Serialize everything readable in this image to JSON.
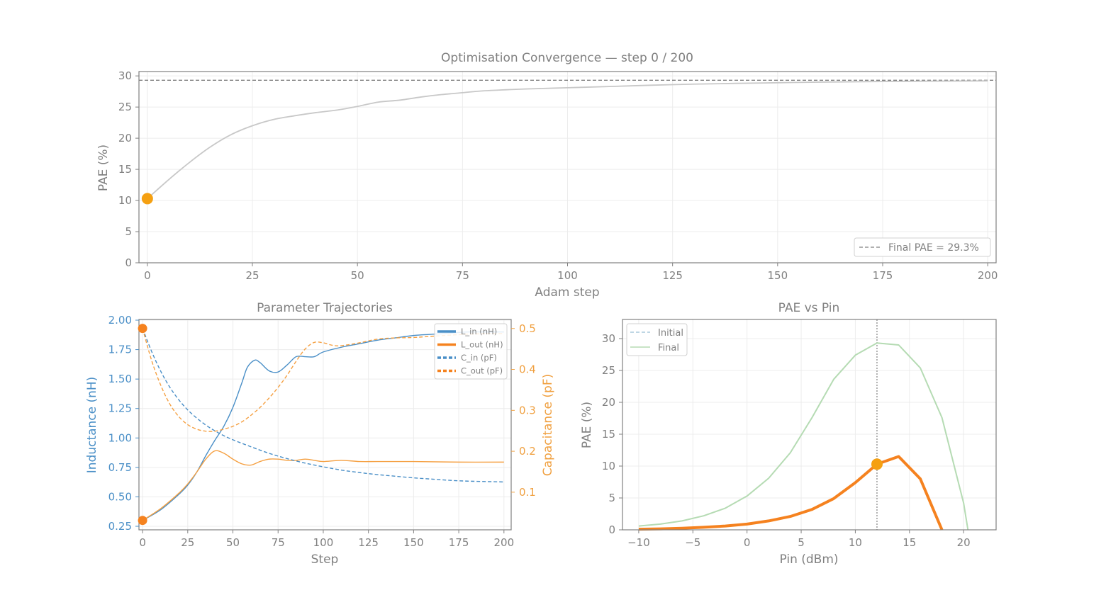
{
  "colors": {
    "text": "#808080",
    "axis": "#808080",
    "grid": "#ececec",
    "convergence_line": "#c8c8c8",
    "marker": "#f5a011",
    "l_in": "#4a8fc7",
    "l_out": "#f5a042",
    "c_in": "#4a8fc7",
    "c_out": "#f5a042",
    "inductance_axis": "#4a8fc7",
    "capacitance_axis": "#f0a040",
    "initial_curve": "#a8c8dc",
    "final_curve": "#b5dbb3",
    "current_curve": "#f5821f"
  },
  "chart_data": [
    {
      "id": "convergence",
      "type": "line",
      "title": "Optimisation Convergence — step 0 / 200",
      "xlabel": "Adam step",
      "ylabel": "PAE (%)",
      "xlim": [
        -2,
        202
      ],
      "ylim": [
        0,
        30
      ],
      "xticks": [
        0,
        25,
        50,
        75,
        100,
        125,
        150,
        175,
        200
      ],
      "yticks": [
        0,
        5,
        10,
        15,
        20,
        25,
        30
      ],
      "grid": true,
      "series": [
        {
          "x": [
            0,
            5,
            10,
            15,
            20,
            25,
            30,
            35,
            40,
            45,
            50,
            55,
            60,
            65,
            70,
            75,
            80,
            90,
            100,
            110,
            125,
            140,
            150,
            160,
            175,
            200
          ],
          "values": [
            10.3,
            13.3,
            16.1,
            18.6,
            20.6,
            22.0,
            23.0,
            23.6,
            24.1,
            24.5,
            25.1,
            25.8,
            26.1,
            26.6,
            27.0,
            27.3,
            27.6,
            27.9,
            28.1,
            28.3,
            28.6,
            28.8,
            28.9,
            29.0,
            29.1,
            29.2
          ]
        }
      ],
      "reference_line": {
        "y": 29.3,
        "label": "Final PAE = 29.3%"
      },
      "marker": {
        "x": 0,
        "y": 10.3
      },
      "legend_position": "lower-right"
    },
    {
      "id": "trajectories",
      "type": "line",
      "title": "Parameter Trajectories",
      "xlabel": "Step",
      "ylabel": "Inductance (nH)",
      "ylabel_right": "Capacitance (pF)",
      "xlim": [
        -2,
        204
      ],
      "ylim": [
        0.22,
        2.0
      ],
      "ylim_right": [
        0.008,
        0.5221
      ],
      "xticks": [
        0,
        25,
        50,
        75,
        100,
        125,
        150,
        175,
        200
      ],
      "yticks": [
        0.25,
        0.5,
        0.75,
        1.0,
        1.25,
        1.5,
        1.75,
        2.0
      ],
      "ytick_labels": [
        "0.25",
        "0.50",
        "0.75",
        "1.00",
        "1.25",
        "1.50",
        "1.75",
        "2.00"
      ],
      "yticks_right": [
        0.1,
        0.2,
        0.3,
        0.4,
        0.5
      ],
      "grid": true,
      "legend_position": "upper-right",
      "series": [
        {
          "name": "L_in (nH)",
          "axis": "left",
          "style": "solid",
          "x": [
            0,
            10,
            20,
            25,
            30,
            35,
            40,
            45,
            50,
            55,
            58,
            62,
            65,
            70,
            75,
            80,
            85,
            90,
            95,
            100,
            110,
            120,
            130,
            140,
            150,
            160,
            170,
            180,
            190,
            200
          ],
          "values": [
            0.3,
            0.39,
            0.52,
            0.6,
            0.71,
            0.85,
            0.98,
            1.1,
            1.26,
            1.47,
            1.6,
            1.66,
            1.64,
            1.57,
            1.56,
            1.62,
            1.69,
            1.69,
            1.69,
            1.73,
            1.77,
            1.8,
            1.83,
            1.85,
            1.87,
            1.88,
            1.89,
            1.9,
            1.9,
            1.9
          ]
        },
        {
          "name": "L_out (nH)",
          "axis": "left",
          "style": "solid",
          "x": [
            0,
            10,
            20,
            25,
            30,
            35,
            40,
            45,
            50,
            55,
            60,
            65,
            70,
            75,
            80,
            85,
            90,
            95,
            100,
            110,
            120,
            130,
            150,
            175,
            200
          ],
          "values": [
            0.3,
            0.4,
            0.53,
            0.61,
            0.71,
            0.82,
            0.89,
            0.87,
            0.82,
            0.78,
            0.77,
            0.8,
            0.82,
            0.82,
            0.81,
            0.81,
            0.82,
            0.81,
            0.8,
            0.81,
            0.8,
            0.8,
            0.8,
            0.795,
            0.795
          ]
        },
        {
          "name": "C_in (pF)",
          "axis": "right",
          "style": "dashed",
          "x": [
            0,
            5,
            10,
            15,
            20,
            25,
            30,
            35,
            40,
            45,
            50,
            60,
            70,
            80,
            90,
            100,
            110,
            120,
            130,
            140,
            150,
            160,
            170,
            180,
            190,
            200
          ],
          "values": [
            0.5,
            0.444,
            0.396,
            0.357,
            0.326,
            0.301,
            0.281,
            0.264,
            0.25,
            0.238,
            0.228,
            0.211,
            0.195,
            0.182,
            0.171,
            0.162,
            0.154,
            0.148,
            0.143,
            0.139,
            0.135,
            0.132,
            0.129,
            0.127,
            0.126,
            0.125
          ]
        },
        {
          "name": "C_out (pF)",
          "axis": "right",
          "style": "dashed",
          "x": [
            0,
            5,
            10,
            15,
            20,
            25,
            30,
            35,
            40,
            45,
            50,
            55,
            60,
            65,
            70,
            75,
            80,
            85,
            90,
            95,
            100,
            105,
            110,
            120,
            130,
            140,
            150,
            160,
            180,
            200
          ],
          "values": [
            0.5,
            0.422,
            0.362,
            0.316,
            0.285,
            0.265,
            0.254,
            0.249,
            0.249,
            0.254,
            0.261,
            0.272,
            0.288,
            0.307,
            0.33,
            0.356,
            0.386,
            0.42,
            0.45,
            0.466,
            0.465,
            0.459,
            0.458,
            0.465,
            0.474,
            0.477,
            0.478,
            0.481,
            0.486,
            0.488
          ]
        }
      ],
      "markers": [
        {
          "x": 0,
          "y": 1.93,
          "axis": "left"
        },
        {
          "x": 0,
          "y": 0.3,
          "axis": "left"
        }
      ]
    },
    {
      "id": "pae_vs_pin",
      "type": "line",
      "title": "PAE vs Pin",
      "xlabel": "Pin (dBm)",
      "ylabel": "PAE (%)",
      "xlim": [
        -11.5,
        23
      ],
      "ylim": [
        0,
        33
      ],
      "xticks": [
        -10,
        -5,
        0,
        5,
        10,
        15,
        20
      ],
      "xtick_labels": [
        "−10",
        "−5",
        "0",
        "5",
        "10",
        "15",
        "20"
      ],
      "yticks": [
        0,
        5,
        10,
        15,
        20,
        25,
        30
      ],
      "grid": true,
      "legend_position": "upper-left",
      "vline_x": 12,
      "series": [
        {
          "name": "Initial",
          "style": "dashed",
          "x": [
            -10,
            -8,
            -6,
            -4,
            -2,
            0,
            2,
            4,
            6,
            8,
            10,
            12,
            14,
            16,
            18
          ],
          "values": [
            0.1,
            0.15,
            0.25,
            0.4,
            0.6,
            0.9,
            1.4,
            2.1,
            3.2,
            4.9,
            7.4,
            10.3,
            11.5,
            8.0,
            0.0
          ]
        },
        {
          "name": "Final",
          "style": "solid",
          "x": [
            -10,
            -8,
            -6,
            -4,
            -2,
            0,
            2,
            4,
            6,
            8,
            10,
            12,
            14,
            16,
            18,
            20,
            20.4
          ],
          "values": [
            0.6,
            0.9,
            1.4,
            2.2,
            3.4,
            5.3,
            8.1,
            12.1,
            17.6,
            23.6,
            27.4,
            29.3,
            29.0,
            25.4,
            17.6,
            4.2,
            0.0
          ]
        },
        {
          "style": "bold-current",
          "x": [
            -10,
            -8,
            -6,
            -4,
            -2,
            0,
            2,
            4,
            6,
            8,
            10,
            12,
            14,
            16,
            18
          ],
          "values": [
            0.1,
            0.15,
            0.25,
            0.4,
            0.6,
            0.9,
            1.4,
            2.1,
            3.2,
            4.9,
            7.4,
            10.3,
            11.5,
            8.0,
            0.0
          ]
        }
      ],
      "marker": {
        "x": 12,
        "y": 10.3
      }
    }
  ]
}
